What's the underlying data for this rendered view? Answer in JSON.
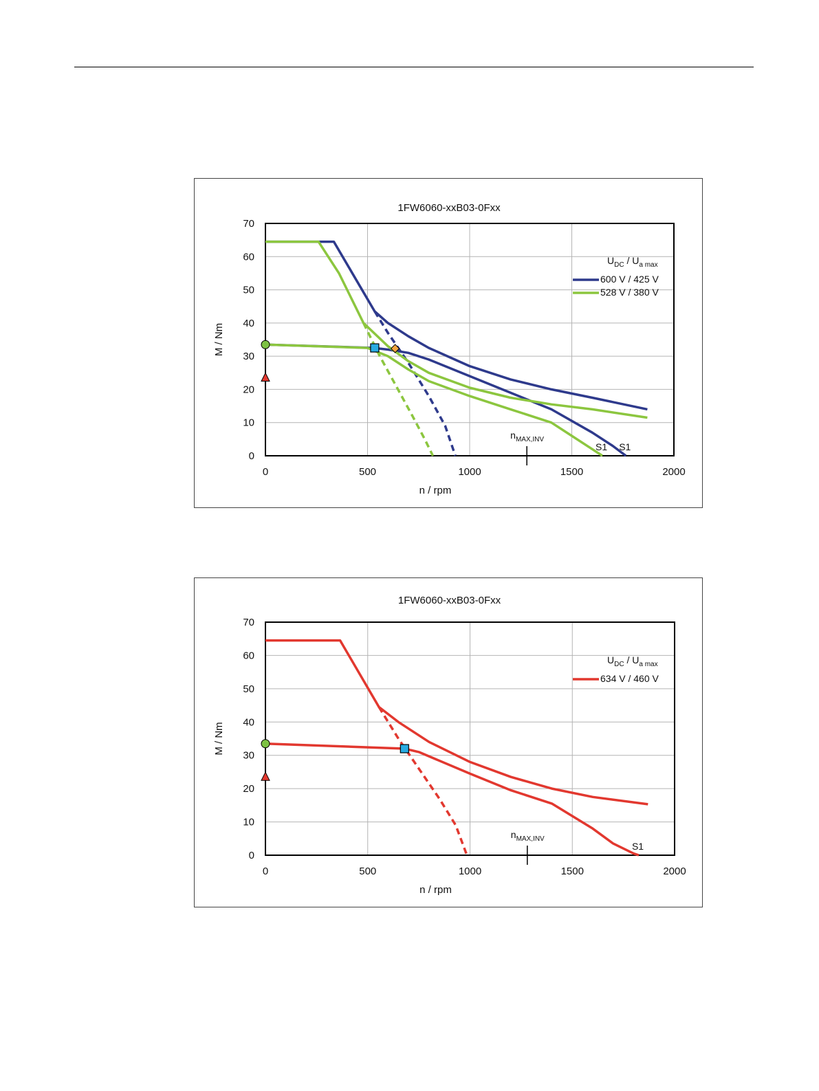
{
  "colors": {
    "blue": "#2e3a8c",
    "green": "#8cc63f",
    "red": "#e2382f",
    "marker_circle": "#7dc243",
    "marker_triangle": "#e2382f",
    "marker_square": "#29abe2",
    "marker_diamond": "#f4a640",
    "grid": "#b4b4b4"
  },
  "chart_data": [
    {
      "type": "line",
      "title": "1FW6060-xxB03-0Fxx",
      "xlabel": "n / rpm",
      "ylabel": "M / Nm",
      "xlim": [
        0,
        2000
      ],
      "ylim": [
        0,
        70
      ],
      "xticks": [
        "0",
        "500",
        "1000",
        "1500",
        "2000"
      ],
      "yticks": [
        "0",
        "10",
        "20",
        "30",
        "40",
        "50",
        "60",
        "70"
      ],
      "grid": true,
      "legend_position": "top-right",
      "legend_title": {
        "main1": "U",
        "sub1": "DC",
        "sep": " / ",
        "main2": "U",
        "sub2": "a max"
      },
      "n_max_inv": {
        "value": 1280,
        "label_main": "n",
        "label_sub": "MAX,INV"
      },
      "series": [
        {
          "name": "600 V / 425 V",
          "color": "blue",
          "style": "solid",
          "role": "peak",
          "x": [
            0,
            335,
            535,
            600,
            700,
            800,
            1000,
            1200,
            1400,
            1600,
            1870
          ],
          "y": [
            64.5,
            64.5,
            43.5,
            40,
            36,
            32.5,
            27,
            23,
            20,
            17.5,
            14
          ]
        },
        {
          "name": "600 V / 425 V",
          "color": "blue",
          "style": "solid",
          "role": "S1",
          "end_label": "S1",
          "x": [
            0,
            530,
            600,
            700,
            800,
            1000,
            1200,
            1400,
            1600,
            1700,
            1765
          ],
          "y": [
            33.5,
            32.5,
            32,
            31,
            29,
            24,
            19,
            14,
            7,
            3,
            0
          ]
        },
        {
          "name": "600 V / 425 V",
          "color": "blue",
          "style": "dashed",
          "role": "extension",
          "x": [
            535,
            600,
            700,
            800,
            880,
            930
          ],
          "y": [
            43.5,
            37,
            28,
            18,
            9,
            0
          ]
        },
        {
          "name": "528 V / 380 V",
          "color": "green",
          "style": "solid",
          "role": "peak",
          "x": [
            0,
            260,
            360,
            480,
            600,
            700,
            800,
            1000,
            1200,
            1400,
            1600,
            1870
          ],
          "y": [
            64.5,
            64.5,
            55,
            40,
            33,
            28.5,
            25,
            20.5,
            17.5,
            15.5,
            14,
            11.5
          ]
        },
        {
          "name": "528 V / 380 V",
          "color": "green",
          "style": "solid",
          "role": "S1",
          "end_label": "S1",
          "x": [
            0,
            500,
            600,
            700,
            800,
            1000,
            1200,
            1400,
            1500,
            1600,
            1650
          ],
          "y": [
            33.5,
            32.5,
            30,
            26,
            22.5,
            18,
            14,
            10,
            6,
            2,
            0
          ]
        },
        {
          "name": "528 V / 380 V",
          "color": "green",
          "style": "dashed",
          "role": "extension",
          "x": [
            480,
            560,
            640,
            720,
            780,
            820
          ],
          "y": [
            40,
            30,
            21,
            12,
            5,
            0
          ]
        }
      ],
      "markers": [
        {
          "shape": "circle",
          "color": "marker_circle",
          "x": 0,
          "y": 33.5
        },
        {
          "shape": "triangle",
          "color": "marker_triangle",
          "x": 0,
          "y": 23.5
        },
        {
          "shape": "square",
          "color": "marker_square",
          "x": 535,
          "y": 32.5
        },
        {
          "shape": "diamond",
          "color": "marker_diamond",
          "x": 635,
          "y": 32.3
        }
      ]
    },
    {
      "type": "line",
      "title": "1FW6060-xxB03-0Fxx",
      "xlabel": "n / rpm",
      "ylabel": "M / Nm",
      "xlim": [
        0,
        2000
      ],
      "ylim": [
        0,
        70
      ],
      "xticks": [
        "0",
        "500",
        "1000",
        "1500",
        "2000"
      ],
      "yticks": [
        "0",
        "10",
        "20",
        "30",
        "40",
        "50",
        "60",
        "70"
      ],
      "grid": true,
      "legend_position": "top-right",
      "legend_title": {
        "main1": "U",
        "sub1": "DC",
        "sep": " / ",
        "main2": "U",
        "sub2": "a max"
      },
      "n_max_inv": {
        "value": 1280,
        "label_main": "n",
        "label_sub": "MAX,INV"
      },
      "series": [
        {
          "name": "634 V / 460 V",
          "color": "red",
          "style": "solid",
          "role": "peak",
          "x": [
            0,
            365,
            555,
            650,
            800,
            1000,
            1200,
            1400,
            1600,
            1870
          ],
          "y": [
            64.5,
            64.5,
            44.5,
            40,
            34,
            28,
            23.5,
            20,
            17.5,
            15.3
          ]
        },
        {
          "name": "634 V / 460 V",
          "color": "red",
          "style": "solid",
          "role": "S1",
          "end_label": "S1",
          "x": [
            0,
            680,
            750,
            1000,
            1200,
            1400,
            1600,
            1700,
            1800,
            1825
          ],
          "y": [
            33.5,
            32,
            31,
            24.5,
            19.5,
            15.5,
            8,
            3.5,
            0.5,
            0
          ]
        },
        {
          "name": "634 V / 460 V",
          "color": "red",
          "style": "dashed",
          "role": "extension",
          "x": [
            555,
            650,
            750,
            850,
            930,
            985
          ],
          "y": [
            44.5,
            35,
            26,
            17,
            9,
            0
          ]
        }
      ],
      "markers": [
        {
          "shape": "circle",
          "color": "marker_circle",
          "x": 0,
          "y": 33.5
        },
        {
          "shape": "triangle",
          "color": "marker_triangle",
          "x": 0,
          "y": 23.5
        },
        {
          "shape": "square",
          "color": "marker_square",
          "x": 680,
          "y": 32
        }
      ]
    }
  ]
}
